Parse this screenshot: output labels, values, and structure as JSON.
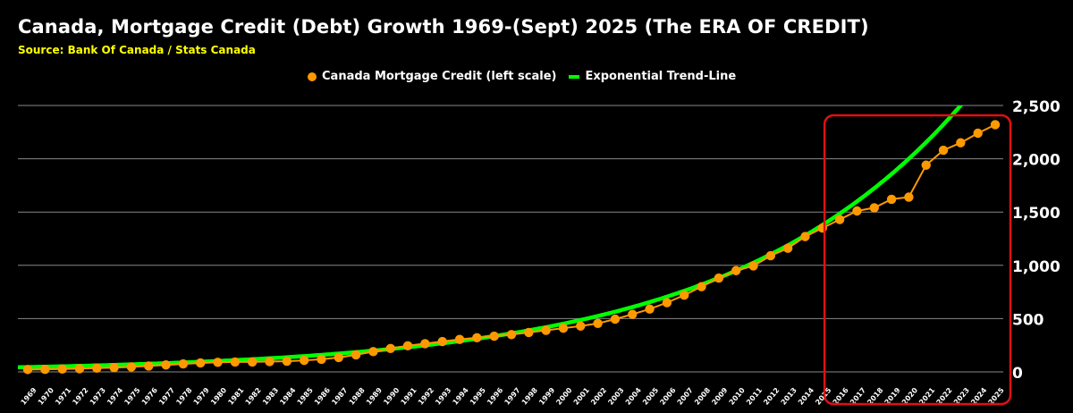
{
  "header": {
    "title": "Canada, Mortgage Credit (Debt) Growth 1969-(Sept) 2025 (The ERA OF CREDIT)",
    "source": "Source: Bank Of Canada / Stats Canada"
  },
  "legend": {
    "series1": "Canada Mortgage Credit (left scale)",
    "series2": "Exponential Trend-Line"
  },
  "colors": {
    "series1": "#ff9900",
    "series2": "#00ff00",
    "highlight_box": "#e01010",
    "grid": "#888888",
    "background": "#000000"
  },
  "chart_data": {
    "type": "line",
    "title": "Canada, Mortgage Credit (Debt) Growth 1969-(Sept) 2025 (The ERA OF CREDIT)",
    "xlabel": "",
    "ylabel": "",
    "categories": [
      "1969",
      "1970",
      "1971",
      "1972",
      "1973",
      "1974",
      "1975",
      "1976",
      "1977",
      "1978",
      "1979",
      "1980",
      "1981",
      "1982",
      "1983",
      "1984",
      "1985",
      "1986",
      "1987",
      "1988",
      "1989",
      "1990",
      "1991",
      "1992",
      "1993",
      "1994",
      "1995",
      "1996",
      "1997",
      "1998",
      "1999",
      "2000",
      "2001",
      "2002",
      "2003",
      "2004",
      "2005",
      "2006",
      "2007",
      "2008",
      "2009",
      "2010",
      "2011",
      "2012",
      "2013",
      "2014",
      "2015",
      "2016",
      "2017",
      "2018",
      "2019",
      "2020",
      "2021",
      "2022",
      "2023",
      "2024",
      "2025"
    ],
    "y_ticks": [
      "0",
      "500",
      "1,000",
      "1,500",
      "2,000",
      "2,500"
    ],
    "ylim": [
      0,
      2500
    ],
    "y_axis_side": "right",
    "grid": true,
    "legend_position": "top-center",
    "series": [
      {
        "name": "Canada Mortgage Credit (left scale)",
        "style": "line-with-markers",
        "values": [
          22,
          24,
          27,
          30,
          35,
          40,
          47,
          55,
          65,
          75,
          84,
          90,
          93,
          93,
          97,
          100,
          108,
          118,
          135,
          160,
          190,
          220,
          245,
          265,
          285,
          305,
          320,
          335,
          350,
          370,
          390,
          410,
          430,
          455,
          495,
          540,
          590,
          650,
          720,
          800,
          880,
          950,
          995,
          1090,
          1160,
          1270,
          1350,
          1430,
          1510,
          1540,
          1620,
          1640,
          1940,
          2080,
          2150,
          2240,
          2320
        ]
      },
      {
        "name": "Exponential Trend-Line",
        "style": "line",
        "trend_type": "exponential",
        "trend_start_value": 45,
        "trend_end_value": 2500
      }
    ],
    "annotations": [
      {
        "type": "rounded-rectangle",
        "label": "",
        "from_category": "2016",
        "to_category": "2025"
      }
    ]
  }
}
